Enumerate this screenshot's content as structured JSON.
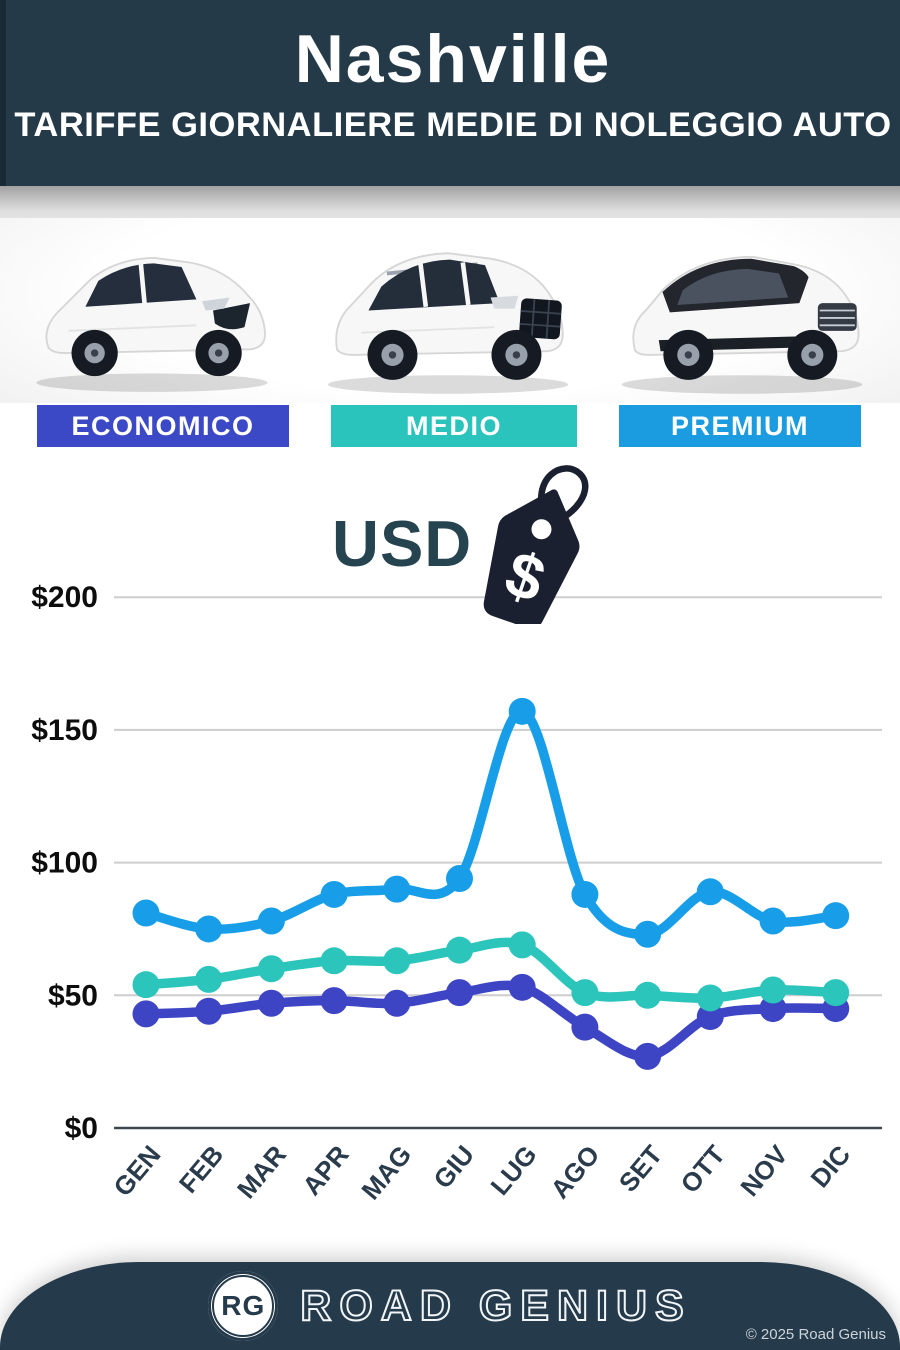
{
  "header": {
    "title": "Nashville",
    "subtitle": "TARIFFE GIORNALIERE MEDIE DI NOLEGGIO AUTO"
  },
  "categories": [
    {
      "label": "ECONOMICO",
      "color": "#3b49c6"
    },
    {
      "label": "MEDIO",
      "color": "#2bc4bc"
    },
    {
      "label": "PREMIUM",
      "color": "#1b9be0"
    }
  ],
  "usd": {
    "label": "USD",
    "tag_symbol": "$"
  },
  "chart_data": {
    "type": "line",
    "title": "Tariffe giornaliere medie di noleggio auto - Nashville (USD)",
    "categories": [
      "GEN",
      "FEB",
      "MAR",
      "APR",
      "MAG",
      "GIU",
      "LUG",
      "AGO",
      "SET",
      "OTT",
      "NOV",
      "DIC"
    ],
    "series": [
      {
        "name": "PREMIUM",
        "color": "#189ee8",
        "values": [
          81,
          75,
          78,
          88,
          90,
          94,
          157,
          88,
          73,
          89,
          78,
          80
        ]
      },
      {
        "name": "MEDIO",
        "color": "#2bc5bc",
        "values": [
          54,
          56,
          60,
          63,
          63,
          67,
          69,
          51,
          50,
          49,
          52,
          51
        ]
      },
      {
        "name": "ECONOMICO",
        "color": "#3e45c5",
        "values": [
          43,
          44,
          47,
          48,
          47,
          51,
          53,
          38,
          27,
          42,
          45,
          45
        ]
      }
    ],
    "y_ticks": [
      {
        "value": 0,
        "label": "$0"
      },
      {
        "value": 50,
        "label": "$50"
      },
      {
        "value": 100,
        "label": "$100"
      },
      {
        "value": 150,
        "label": "$150"
      },
      {
        "value": 200,
        "label": "$200"
      }
    ],
    "ylim": [
      0,
      200
    ],
    "grid": true,
    "legend_position": "none",
    "currency": "USD"
  },
  "footer": {
    "logo_initials": "RG",
    "brand": "ROAD GENIUS",
    "copyright": "© 2025 Road Genius"
  }
}
